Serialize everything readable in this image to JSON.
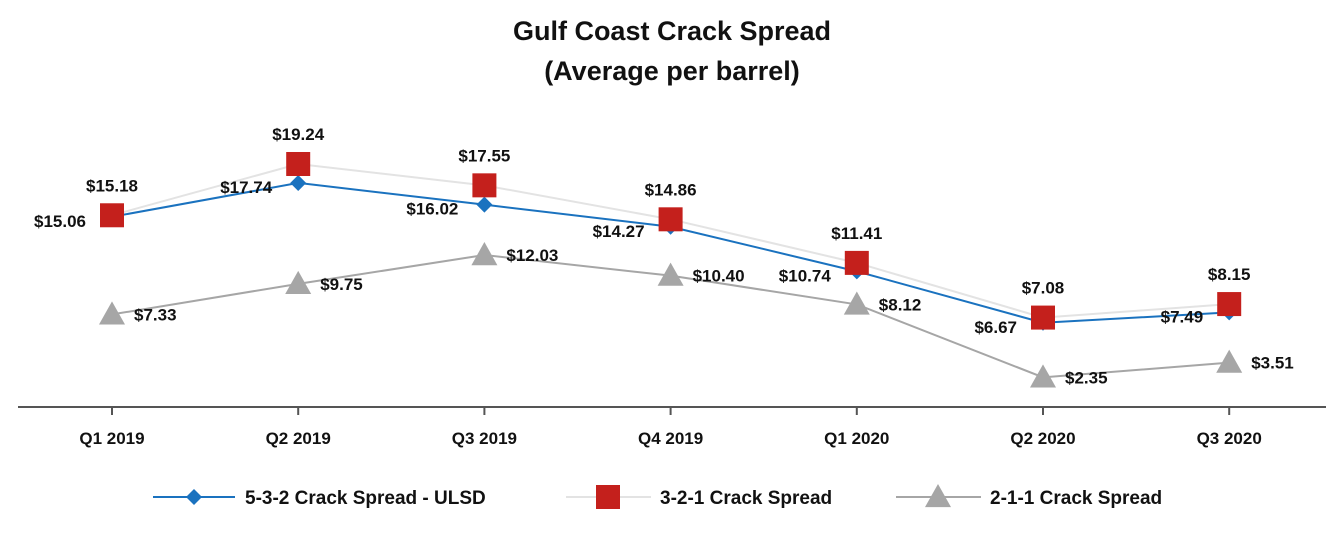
{
  "chart_data": {
    "type": "line",
    "title": "Gulf Coast Crack Spread",
    "subtitle": "(Average per barrel)",
    "categories": [
      "Q1 2019",
      "Q2 2019",
      "Q3 2019",
      "Q4 2019",
      "Q1 2020",
      "Q2 2020",
      "Q3 2020"
    ],
    "ylim": [
      0,
      22
    ],
    "grid": false,
    "legend_position": "bottom",
    "series": [
      {
        "name": "5-3-2 Crack Spread - ULSD",
        "marker": "diamond",
        "color": "#1a72bf",
        "values": [
          15.06,
          17.74,
          16.02,
          14.27,
          10.74,
          6.67,
          7.49
        ],
        "labels": [
          "$15.06",
          "$17.74",
          "$16.02",
          "$14.27",
          "$10.74",
          "$6.67",
          "$7.49"
        ]
      },
      {
        "name": "3-2-1 Crack Spread",
        "marker": "square",
        "color": "#c4201c",
        "line_color": "#e3e3e3",
        "values": [
          15.18,
          19.24,
          17.55,
          14.86,
          11.41,
          7.08,
          8.15
        ],
        "labels": [
          "$15.18",
          "$19.24",
          "$17.55",
          "$14.86",
          "$11.41",
          "$7.08",
          "$8.15"
        ]
      },
      {
        "name": "2-1-1 Crack Spread",
        "marker": "triangle",
        "color": "#a6a6a6",
        "values": [
          7.33,
          9.75,
          12.03,
          10.4,
          8.12,
          2.35,
          3.51
        ],
        "labels": [
          "$7.33",
          "$9.75",
          "$12.03",
          "$10.40",
          "$8.12",
          "$2.35",
          "$3.51"
        ]
      }
    ]
  }
}
